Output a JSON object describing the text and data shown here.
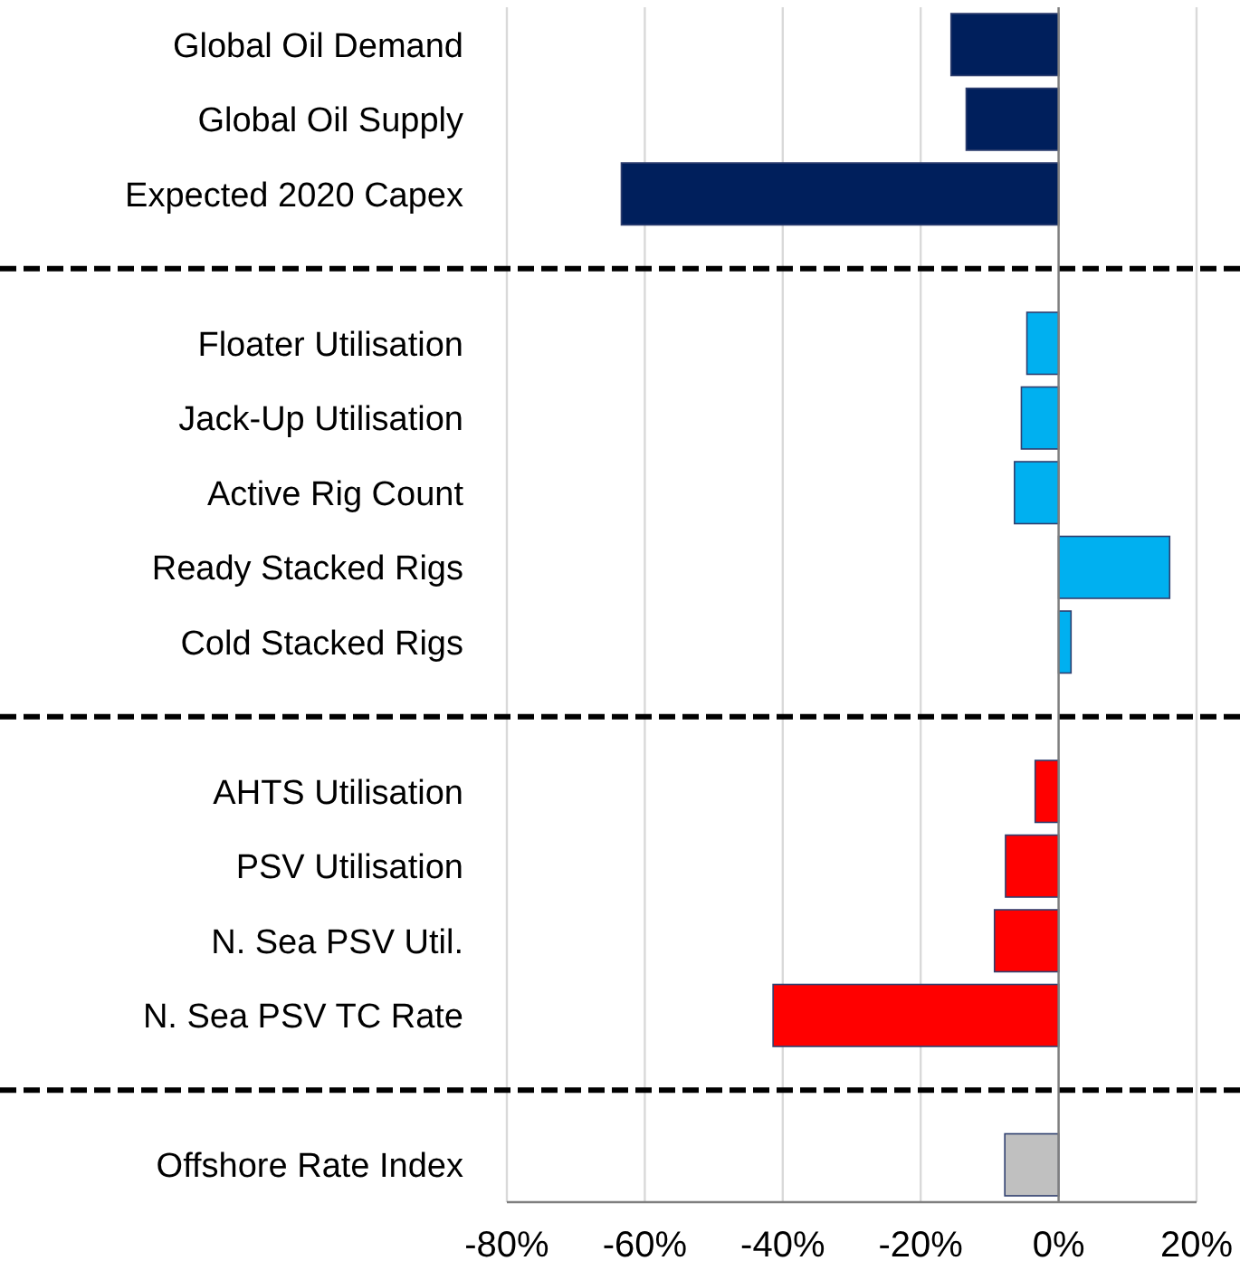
{
  "chart_data": {
    "type": "bar",
    "orientation": "horizontal",
    "categories": [
      "Global Oil Demand",
      "Global Oil Supply",
      "Expected 2020 Capex",
      null,
      "Floater Utilisation",
      "Jack-Up Utilisation",
      "Active Rig Count",
      "Ready Stacked Rigs",
      "Cold Stacked Rigs",
      null,
      "AHTS Utilisation",
      "PSV Utilisation",
      "N. Sea PSV Util.",
      "N. Sea PSV TC Rate",
      null,
      "Offshore Rate Index"
    ],
    "values": [
      -15.6,
      -13.4,
      -63.4,
      null,
      -4.6,
      -5.4,
      -6.4,
      16.1,
      1.8,
      null,
      -3.4,
      -7.7,
      -9.3,
      -41.4,
      null,
      -7.8
    ],
    "colors": [
      "#001f5c",
      "#001f5c",
      "#001f5c",
      null,
      "#00b0f0",
      "#00b0f0",
      "#00b0f0",
      "#00b0f0",
      "#00b0f0",
      null,
      "#ff0000",
      "#ff0000",
      "#ff0000",
      "#ff0000",
      null,
      "#c0c0c0"
    ],
    "xlim": [
      -80,
      20
    ],
    "xticks": [
      {
        "value": -80,
        "label": "-80%"
      },
      {
        "value": -60,
        "label": "-60%"
      },
      {
        "value": -40,
        "label": "-40%"
      },
      {
        "value": -20,
        "label": "-20%"
      },
      {
        "value": 0,
        "label": "0%"
      },
      {
        "value": 20,
        "label": "20%"
      }
    ],
    "grid": "x"
  }
}
